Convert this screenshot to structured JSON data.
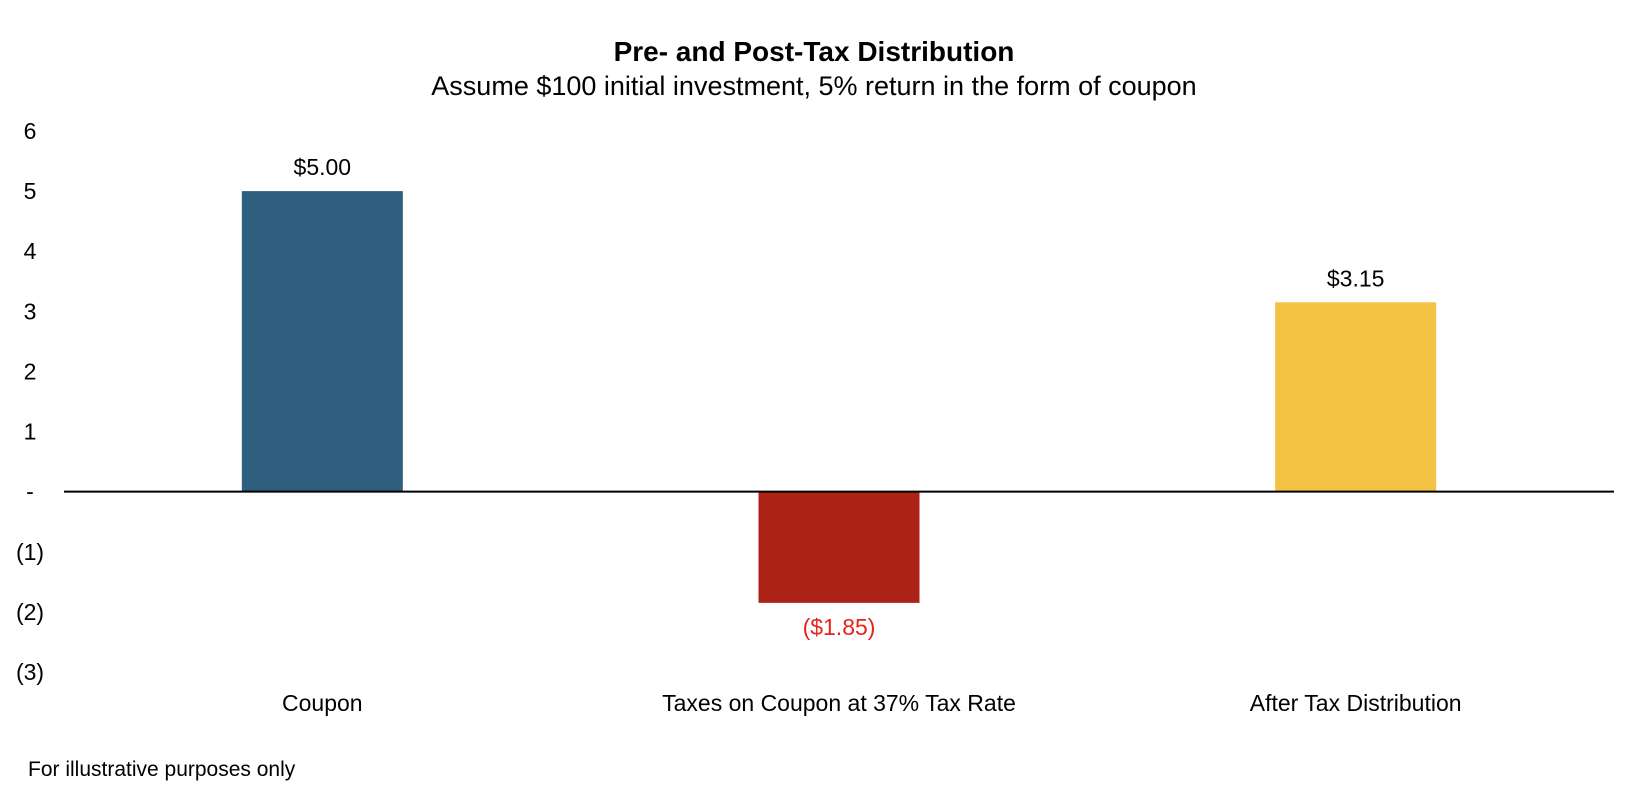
{
  "chart_data": {
    "type": "bar",
    "title": "Pre- and Post-Tax Distribution",
    "subtitle": "Assume $100 initial investment, 5% return in the form of coupon",
    "categories": [
      "Coupon",
      "Taxes on Coupon at 37% Tax Rate",
      "After Tax Distribution"
    ],
    "values": [
      5.0,
      -1.85,
      3.15
    ],
    "data_labels": [
      "$5.00",
      "($1.85)",
      "$3.15"
    ],
    "bar_colors": [
      "#2E5F7E",
      "#AE2318",
      "#F3C244"
    ],
    "negative_label_color": "#E8231D",
    "ylim": [
      -3,
      6
    ],
    "yticks": [
      {
        "value": 6,
        "label": "6"
      },
      {
        "value": 5,
        "label": "5"
      },
      {
        "value": 4,
        "label": "4"
      },
      {
        "value": 3,
        "label": "3"
      },
      {
        "value": 2,
        "label": "2"
      },
      {
        "value": 1,
        "label": "1"
      },
      {
        "value": 0,
        "label": "-"
      },
      {
        "value": -1,
        "label": "(1)"
      },
      {
        "value": -2,
        "label": "(2)"
      },
      {
        "value": -3,
        "label": "(3)"
      }
    ],
    "xlabel": "",
    "ylabel": "",
    "grid": false,
    "legend": false,
    "footnote": "For illustrative purposes only"
  }
}
